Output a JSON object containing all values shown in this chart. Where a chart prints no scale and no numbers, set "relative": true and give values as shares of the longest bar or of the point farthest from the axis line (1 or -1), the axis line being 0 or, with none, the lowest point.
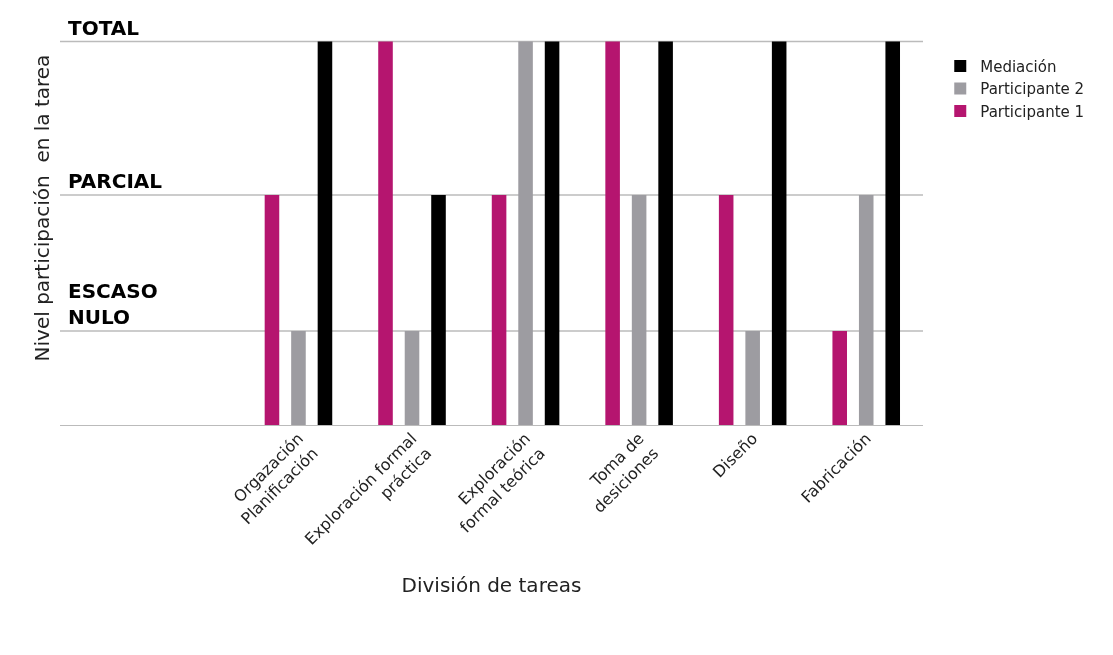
{
  "chart_data": {
    "type": "bar",
    "xlabel": "División de tareas",
    "annotations": [
      "Nivel participación  en la tarea"
    ],
    "categories": [
      "Orgazación\nPlanificación",
      "Exploración formal\npráctica",
      "Exploración\nformal teórica",
      "Toma de\ndesiciones",
      "Diseño",
      "Fabricación"
    ],
    "series": [
      {
        "name": "Participante 1",
        "color": "#b5156f",
        "values": [
          0.6,
          1,
          0.6,
          1,
          0.6,
          0.245
        ]
      },
      {
        "name": "Participante 2",
        "color": "#9d9ca1",
        "values": [
          0.245,
          0.245,
          1,
          0.6,
          0.245,
          0.6
        ]
      },
      {
        "name": "Mediación",
        "color": "#000000",
        "values": [
          1,
          0.6,
          1,
          1,
          1,
          1
        ]
      }
    ],
    "relative": true,
    "ref_lines": [
      {
        "axis": "y",
        "value": 0.245,
        "label": "ESCASO\nNULO",
        "color": "#bbbbbb"
      },
      {
        "axis": "y",
        "value": 0.6,
        "label": "PARCIAL",
        "color": "#bbbbbb"
      },
      {
        "axis": "y",
        "value": 1,
        "label": "TOTAL",
        "color": "#bbbbbb"
      }
    ],
    "legend": "right"
  }
}
